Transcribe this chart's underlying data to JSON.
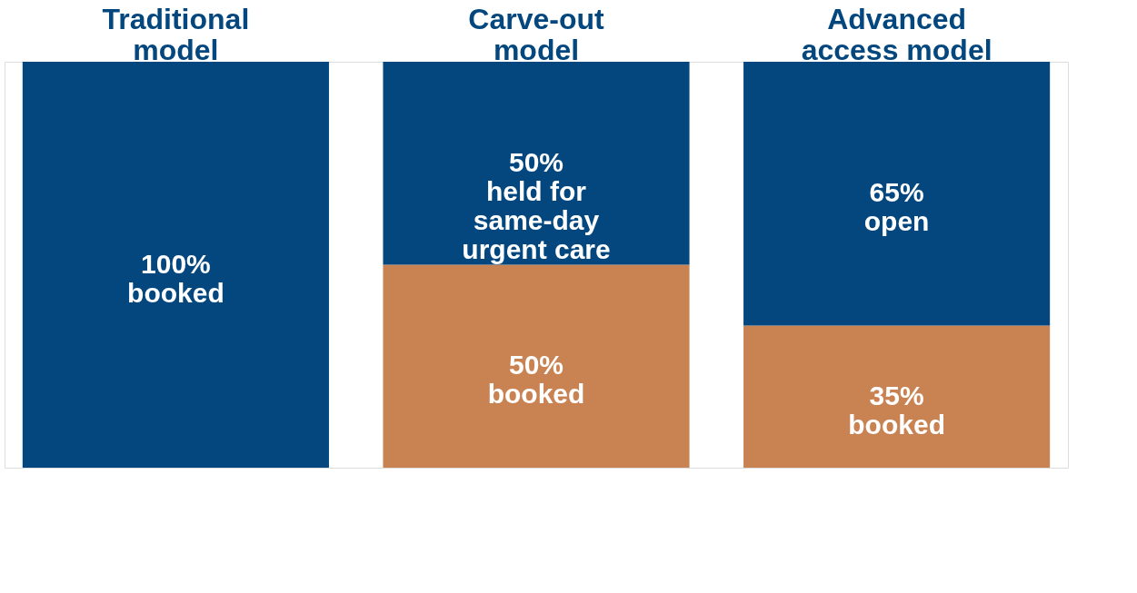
{
  "chart_data": {
    "type": "bar",
    "stacked": true,
    "categories": [
      "Traditional model",
      "Carve-out model",
      "Advanced access model"
    ],
    "series": [
      {
        "colors": [
          "#03477e",
          "#c98352",
          "#c98352"
        ],
        "values": [
          100,
          50,
          35
        ],
        "value_labels": [
          "100%\nbooked",
          "50%\nbooked",
          "35%\nbooked"
        ]
      },
      {
        "color": "#03477e",
        "values": [
          null,
          50,
          65
        ],
        "value_labels": [
          null,
          "50%\nheld for\nsame-day\nurgent care",
          "65%\nopen"
        ]
      }
    ],
    "ylim": [
      0,
      100
    ],
    "tick_labels": "x"
  }
}
